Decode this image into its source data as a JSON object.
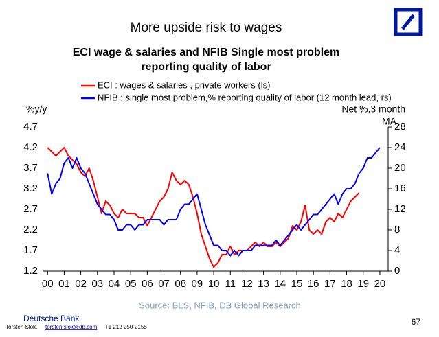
{
  "slide": {
    "title": "More upside risk to wages",
    "source": "Source: BLS, NFIB, DB Global Research",
    "brand": "Deutsche Bank",
    "author": "Torsten Slok,",
    "email": "torsten.slok@db.com",
    "phone": "+1 212 250-2155",
    "page_number": "67"
  },
  "chart_data": {
    "type": "line",
    "title": [
      "ECI wage & salaries and NFIB Single most problem",
      "reporting quality of labor"
    ],
    "y_label": "%y/y",
    "y2_label": [
      "Net %,3 month",
      "MA"
    ],
    "legend": "top",
    "xlim": [
      1999.7,
      2020.5
    ],
    "xticks": [
      {
        "value": 2000,
        "label": "00"
      },
      {
        "value": 2001,
        "label": "01"
      },
      {
        "value": 2002,
        "label": "02"
      },
      {
        "value": 2003,
        "label": "03"
      },
      {
        "value": 2004,
        "label": "04"
      },
      {
        "value": 2005,
        "label": "05"
      },
      {
        "value": 2006,
        "label": "06"
      },
      {
        "value": 2007,
        "label": "07"
      },
      {
        "value": 2008,
        "label": "08"
      },
      {
        "value": 2009,
        "label": "09"
      },
      {
        "value": 2010,
        "label": "10"
      },
      {
        "value": 2011,
        "label": "11"
      },
      {
        "value": 2012,
        "label": "12"
      },
      {
        "value": 2013,
        "label": "13"
      },
      {
        "value": 2014,
        "label": "14"
      },
      {
        "value": 2015,
        "label": "15"
      },
      {
        "value": 2016,
        "label": "16"
      },
      {
        "value": 2017,
        "label": "17"
      },
      {
        "value": 2018,
        "label": "18"
      },
      {
        "value": 2019,
        "label": "19"
      },
      {
        "value": 2020,
        "label": "20"
      }
    ],
    "ylim": [
      1.2,
      4.7
    ],
    "yticks": [
      4.7,
      4.2,
      3.7,
      3.2,
      2.7,
      2.2,
      1.7,
      1.2
    ],
    "y2lim": [
      0,
      28
    ],
    "y2ticks": [
      28,
      24,
      20,
      16,
      12,
      8,
      4,
      0
    ],
    "x": [
      2000,
      2000.25,
      2000.5,
      2000.75,
      2001,
      2001.25,
      2001.5,
      2001.75,
      2002,
      2002.25,
      2002.5,
      2002.75,
      2003,
      2003.25,
      2003.5,
      2003.75,
      2004,
      2004.25,
      2004.5,
      2004.75,
      2005,
      2005.25,
      2005.5,
      2005.75,
      2006,
      2006.25,
      2006.5,
      2006.75,
      2007,
      2007.25,
      2007.5,
      2007.75,
      2008,
      2008.25,
      2008.5,
      2008.75,
      2009,
      2009.25,
      2009.5,
      2009.75,
      2010,
      2010.25,
      2010.5,
      2010.75,
      2011,
      2011.25,
      2011.5,
      2011.75,
      2012,
      2012.25,
      2012.5,
      2012.75,
      2013,
      2013.25,
      2013.5,
      2013.75,
      2014,
      2014.25,
      2014.5,
      2014.75,
      2015,
      2015.25,
      2015.5,
      2015.75,
      2016,
      2016.25,
      2016.5,
      2016.75,
      2017,
      2017.25,
      2017.5,
      2017.75,
      2018,
      2018.25,
      2018.5,
      2018.75,
      2019,
      2019.25,
      2019.5,
      2019.75,
      2020
    ],
    "series": [
      {
        "name": "ECI : wages & salaries , private workers (ls)",
        "color": "#ff0000",
        "values": [
          4.2,
          4.1,
          4.0,
          4.1,
          4.2,
          4.0,
          3.9,
          3.8,
          3.6,
          3.5,
          3.7,
          3.4,
          3.0,
          2.6,
          2.9,
          2.8,
          2.6,
          2.5,
          2.7,
          2.6,
          2.6,
          2.6,
          2.5,
          2.5,
          2.3,
          2.5,
          2.7,
          2.9,
          3.0,
          3.2,
          3.6,
          3.4,
          3.3,
          3.4,
          3.3,
          3.0,
          2.6,
          2.1,
          1.8,
          1.5,
          1.3,
          1.4,
          1.6,
          1.6,
          1.8,
          1.6,
          1.7,
          1.7,
          1.7,
          1.8,
          1.9,
          1.8,
          1.9,
          1.8,
          1.8,
          1.9,
          1.8,
          1.9,
          2.0,
          2.3,
          2.2,
          2.4,
          2.8,
          2.2,
          2.1,
          2.2,
          2.1,
          2.4,
          2.5,
          2.4,
          2.6,
          2.5,
          2.7,
          2.9,
          3.0,
          3.1,
          null,
          null,
          null,
          null,
          null
        ]
      },
      {
        "name": "NFIB : single most problem,% reporting quality of labor (12 month lead, rs)",
        "color": "#0000ff",
        "axis": "y2",
        "values": [
          19,
          15,
          17,
          18,
          21,
          22,
          20,
          22,
          20,
          19,
          17,
          15,
          13,
          12,
          11,
          11,
          10,
          8,
          8,
          9,
          9,
          8,
          9,
          9,
          10,
          10,
          10,
          10,
          9,
          10,
          10,
          10,
          12,
          13,
          13,
          14,
          15,
          12,
          9,
          7,
          5,
          5,
          4,
          4,
          3,
          4,
          3,
          4,
          4,
          4,
          5,
          5,
          5,
          5,
          5,
          6,
          5,
          6,
          7,
          8,
          9,
          8,
          9,
          10,
          11,
          11,
          12,
          13,
          14,
          15,
          13,
          15,
          16,
          16,
          17,
          19,
          20,
          22,
          22,
          23,
          24
        ]
      }
    ]
  }
}
